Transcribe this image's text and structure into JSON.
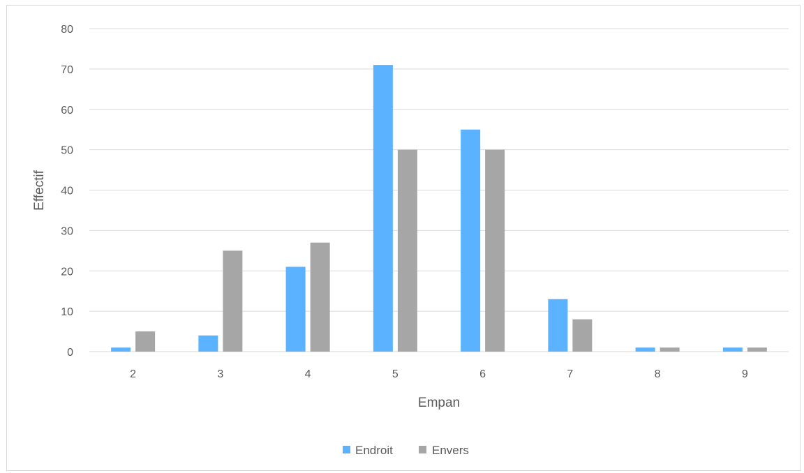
{
  "chart_data": {
    "type": "bar",
    "title": "",
    "xlabel": "Empan",
    "ylabel": "Effectif",
    "categories": [
      "2",
      "3",
      "4",
      "5",
      "6",
      "7",
      "8",
      "9"
    ],
    "series": [
      {
        "name": "Endroit",
        "values": [
          1,
          4,
          21,
          71,
          55,
          13,
          1,
          1
        ]
      },
      {
        "name": "Envers",
        "values": [
          5,
          25,
          27,
          50,
          50,
          8,
          1,
          1
        ]
      }
    ],
    "ylim": [
      0,
      80
    ],
    "yticks": [
      0,
      10,
      20,
      30,
      40,
      50,
      60,
      70,
      80
    ],
    "grid": true,
    "legend_position": "bottom"
  },
  "colors": {
    "Endroit": "#5bb3ff",
    "Envers": "#a6a6a6",
    "grid": "#d9d9d9",
    "text": "#595959"
  }
}
